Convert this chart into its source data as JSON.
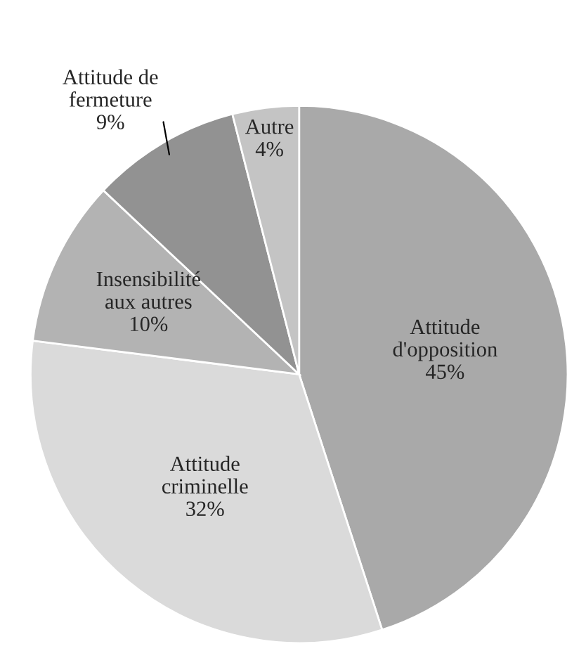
{
  "chart_data": {
    "type": "pie",
    "categories": [
      "Attitude\nd'opposition",
      "Attitude\ncriminelle",
      "Insensibilité\naux autres",
      "Attitude de\nfermeture",
      "Autre"
    ],
    "values": [
      45,
      32,
      10,
      9,
      4
    ],
    "value_labels": [
      "45%",
      "32%",
      "10%",
      "9%",
      "4%"
    ],
    "colors": [
      "#a9a9a9",
      "#dadada",
      "#b3b3b3",
      "#929292",
      "#c4c4c4"
    ],
    "legend": false
  }
}
